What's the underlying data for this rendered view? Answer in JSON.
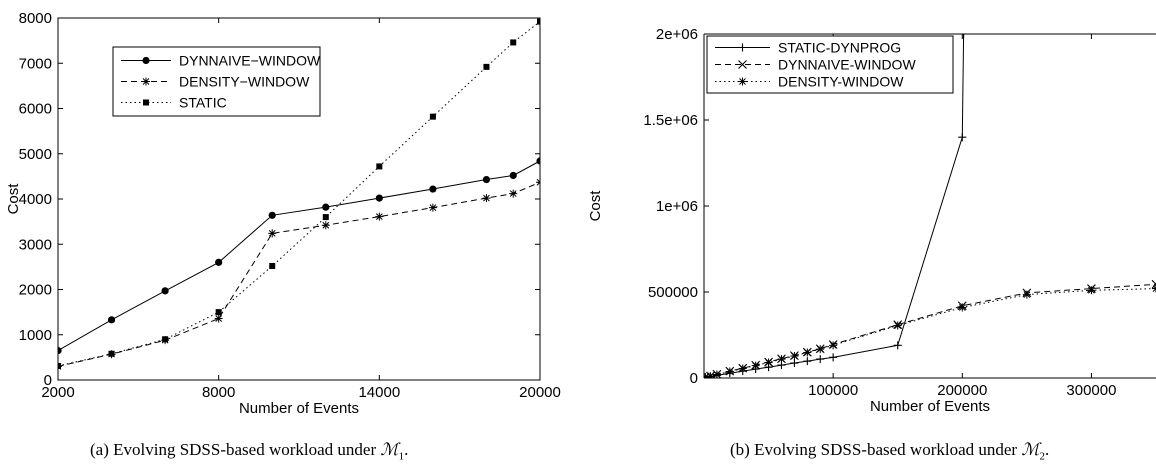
{
  "chart_data": [
    {
      "type": "line",
      "caption": "(a) Evolving SDSS-based workload under ℳ1.",
      "caption_parts": {
        "pre": "(a) Evolving SDSS-based workload under ",
        "sym": "ℳ",
        "sub": "1",
        "post": "."
      },
      "xlabel": "Number of Events",
      "ylabel": "Cost",
      "xlim": [
        2000,
        20000
      ],
      "ylim": [
        0,
        8000
      ],
      "xticks": [
        2000,
        8000,
        14000,
        20000
      ],
      "xtick_labels": [
        "2000",
        "8000",
        "14000",
        "20000"
      ],
      "yticks": [
        0,
        1000,
        2000,
        3000,
        4000,
        5000,
        6000,
        7000,
        8000
      ],
      "ytick_labels": [
        "0",
        "1000",
        "2000",
        "3000",
        "4000",
        "5000",
        "6000",
        "7000",
        "8000"
      ],
      "grid": false,
      "legend_position": "top-left",
      "series": [
        {
          "name": "DYNNAIVE−WINDOW",
          "marker": "circle",
          "dash": "solid",
          "x": [
            2000,
            4000,
            6000,
            8000,
            10000,
            12000,
            14000,
            16000,
            18000,
            19000,
            20000
          ],
          "y": [
            650,
            1330,
            1970,
            2600,
            3640,
            3820,
            4020,
            4220,
            4430,
            4520,
            4840
          ]
        },
        {
          "name": "DENSITY−WINDOW",
          "marker": "star",
          "dash": "dashed",
          "x": [
            2000,
            4000,
            6000,
            8000,
            10000,
            12000,
            14000,
            16000,
            18000,
            19000,
            20000
          ],
          "y": [
            300,
            570,
            880,
            1360,
            3240,
            3420,
            3610,
            3810,
            4020,
            4120,
            4370
          ]
        },
        {
          "name": "STATIC",
          "marker": "square",
          "dash": "dotted",
          "x": [
            2000,
            4000,
            6000,
            8000,
            10000,
            12000,
            14000,
            16000,
            18000,
            19000,
            20000
          ],
          "y": [
            310,
            580,
            900,
            1500,
            2520,
            3600,
            4720,
            5820,
            6920,
            7460,
            7920
          ]
        }
      ]
    },
    {
      "type": "line",
      "caption": "(b) Evolving SDSS-based workload under ℳ2.",
      "caption_parts": {
        "pre": "(b) Evolving SDSS-based workload under ",
        "sym": "ℳ",
        "sub": "2",
        "post": "."
      },
      "xlabel": "Number of Events",
      "ylabel": "Cost",
      "xlim": [
        0,
        350000
      ],
      "ylim": [
        0,
        2000000
      ],
      "xticks": [
        0,
        100000,
        200000,
        300000
      ],
      "xtick_labels": [
        "",
        "100000",
        "200000",
        "300000"
      ],
      "yticks": [
        0,
        500000,
        1000000,
        1500000,
        2000000
      ],
      "ytick_labels": [
        "0",
        "500000",
        "1e+06",
        "1.5e+06",
        "2e+06"
      ],
      "grid": false,
      "legend_position": "top-left",
      "series": [
        {
          "name": "STATIC-DYNPROG",
          "marker": "plus",
          "dash": "solid",
          "x": [
            1000,
            5000,
            10000,
            20000,
            30000,
            40000,
            50000,
            60000,
            70000,
            80000,
            90000,
            100000,
            150000,
            200000,
            201000
          ],
          "y": [
            5000,
            8000,
            15000,
            28000,
            40000,
            52000,
            63000,
            75000,
            87000,
            98000,
            110000,
            120000,
            190000,
            1400000,
            2000000
          ]
        },
        {
          "name": "DYNNAIVE-WINDOW",
          "marker": "x",
          "dash": "dashed",
          "x": [
            1000,
            5000,
            10000,
            20000,
            30000,
            40000,
            50000,
            60000,
            70000,
            80000,
            90000,
            100000,
            150000,
            200000,
            250000,
            300000,
            350000
          ],
          "y": [
            6000,
            12000,
            22000,
            40000,
            57000,
            75000,
            93000,
            112000,
            130000,
            150000,
            170000,
            195000,
            310000,
            420000,
            495000,
            520000,
            545000
          ]
        },
        {
          "name": "DENSITY-WINDOW",
          "marker": "star",
          "dash": "dotted",
          "x": [
            1000,
            5000,
            10000,
            20000,
            30000,
            40000,
            50000,
            60000,
            70000,
            80000,
            90000,
            100000,
            150000,
            200000,
            250000,
            300000,
            350000
          ],
          "y": [
            5000,
            10000,
            20000,
            38000,
            55000,
            72000,
            90000,
            110000,
            128000,
            148000,
            168000,
            190000,
            305000,
            410000,
            485000,
            510000,
            520000
          ]
        }
      ]
    }
  ]
}
